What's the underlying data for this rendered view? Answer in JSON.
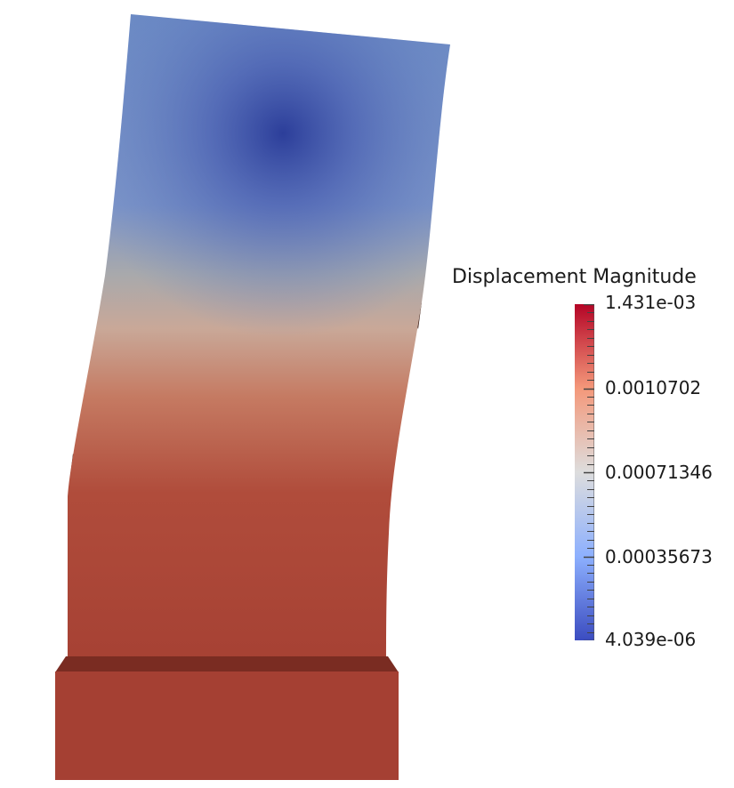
{
  "legend": {
    "title": "Displacement Magnitude",
    "max_label": "1.431e-03",
    "labels": [
      "0.0010702",
      "0.00071346",
      "0.00035673"
    ],
    "min_label": "4.039e-06",
    "colormap": [
      "#3b4cc0",
      "#8db0fe",
      "#dddddd",
      "#f4987a",
      "#b40426"
    ]
  },
  "colors": {
    "base": "#a54033",
    "base_top": "#7a2c22",
    "shadow": "#3a1a12",
    "min_displacement": "#2c3e9a",
    "max_displacement": "#a54033"
  }
}
